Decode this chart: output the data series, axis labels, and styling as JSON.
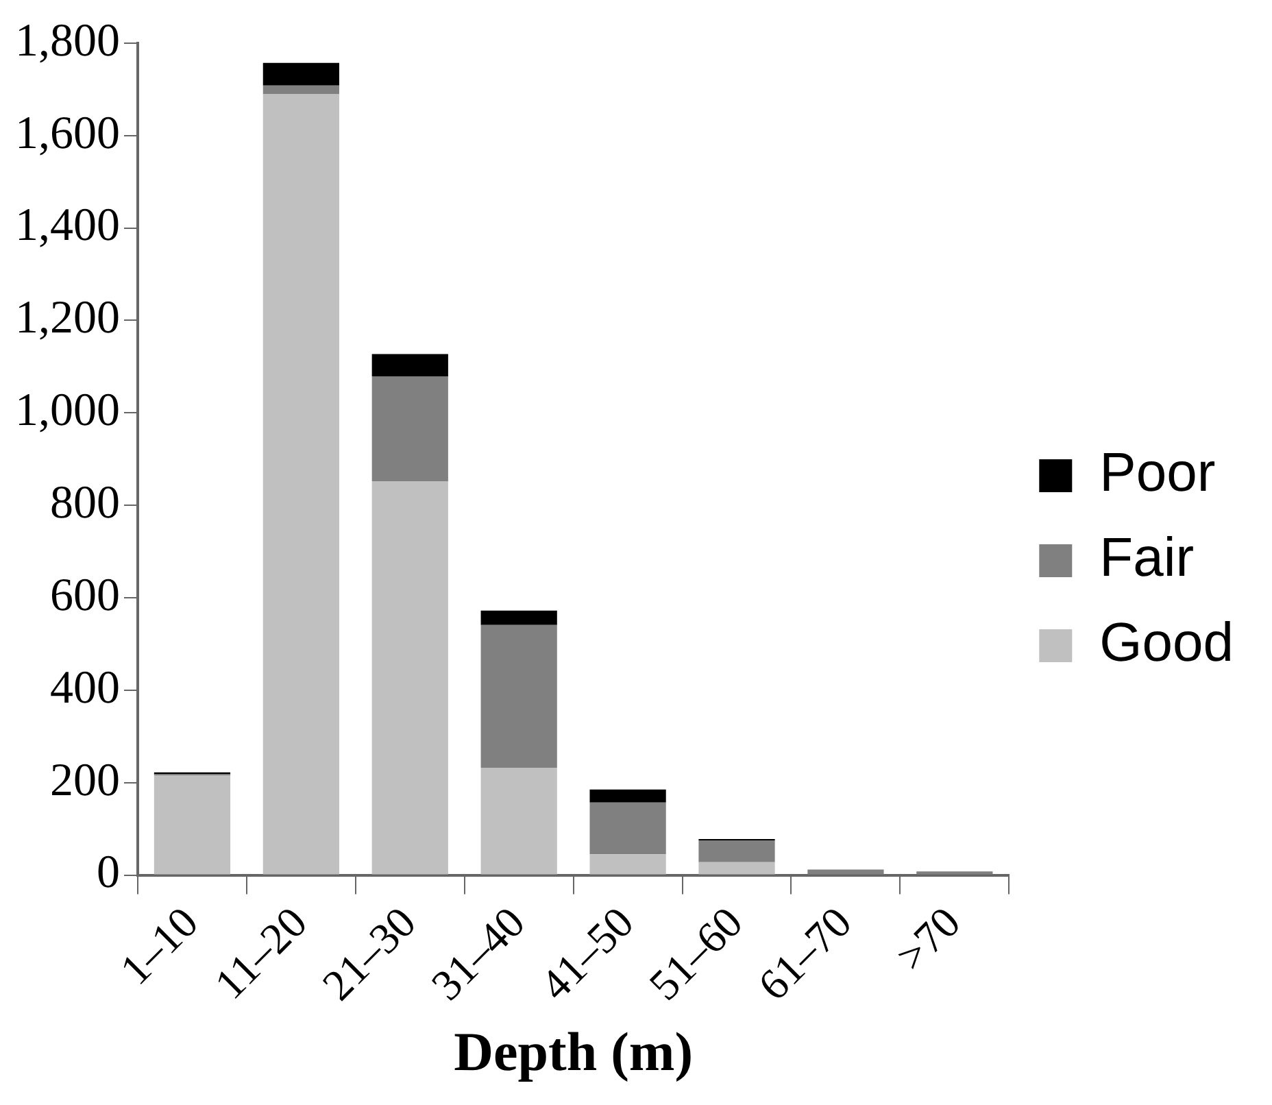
{
  "chart_data": {
    "type": "bar",
    "xlabel": "Depth (m)",
    "categories": [
      "1–10",
      "11–20",
      "21–30",
      "31–40",
      "41–50",
      "51–60",
      "61–70",
      ">70"
    ],
    "stacked": true,
    "legend": "right",
    "grid": false,
    "ylim": [
      0,
      1800
    ],
    "yticks": [
      {
        "value": 0,
        "label": "0"
      },
      {
        "value": 200,
        "label": "200"
      },
      {
        "value": 400,
        "label": "400"
      },
      {
        "value": 600,
        "label": "600"
      },
      {
        "value": 800,
        "label": "800"
      },
      {
        "value": 1000,
        "label": "1,000"
      },
      {
        "value": 1200,
        "label": "1,200"
      },
      {
        "value": 1400,
        "label": "1,400"
      },
      {
        "value": 1600,
        "label": "1,600"
      },
      {
        "value": 1800,
        "label": "1,800"
      }
    ],
    "series": [
      {
        "name": "Good",
        "color": "#c0c0c0",
        "values": [
          215,
          1690,
          852,
          232,
          45,
          28,
          0,
          0
        ]
      },
      {
        "name": "Fair",
        "color": "#808080",
        "values": [
          3,
          18,
          227,
          309,
          112,
          47,
          12,
          8
        ]
      },
      {
        "name": "Poor",
        "color": "#000000",
        "values": [
          4,
          49,
          48,
          31,
          28,
          3,
          0,
          0
        ]
      }
    ]
  }
}
